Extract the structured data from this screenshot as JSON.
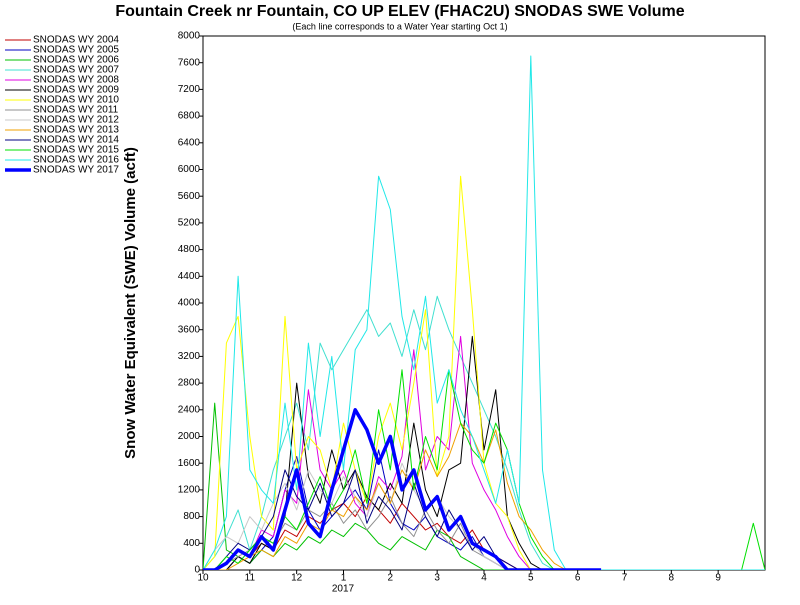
{
  "chart_data": {
    "type": "line",
    "title": "Fountain Creek nr Fountain, CO UP ELEV (FHAC2U) SNODAS SWE Volume",
    "subtitle": "(Each line corresponds to a Water Year starting Oct 1)",
    "y_label": "Snow Water Equivalent (SWE) Volume (acft)",
    "x_annotation": "2017",
    "x": [
      0,
      0.25,
      0.5,
      0.75,
      1,
      1.25,
      1.5,
      1.75,
      2,
      2.25,
      2.5,
      2.75,
      3,
      3.25,
      3.5,
      3.75,
      4,
      4.25,
      4.5,
      4.75,
      5,
      5.25,
      5.5,
      5.75,
      6,
      6.25,
      6.5,
      6.75,
      7,
      7.25,
      7.5,
      7.75,
      8,
      8.25,
      8.5,
      11.5,
      11.75,
      12
    ],
    "xlim": [
      0,
      12
    ],
    "xticks": [
      {
        "value": 0,
        "label": "10"
      },
      {
        "value": 1,
        "label": "11"
      },
      {
        "value": 2,
        "label": "12"
      },
      {
        "value": 3,
        "label": "1"
      },
      {
        "value": 4,
        "label": "2"
      },
      {
        "value": 5,
        "label": "3"
      },
      {
        "value": 6,
        "label": "4"
      },
      {
        "value": 7,
        "label": "5"
      },
      {
        "value": 8,
        "label": "6"
      },
      {
        "value": 9,
        "label": "7"
      },
      {
        "value": 10,
        "label": "8"
      },
      {
        "value": 11,
        "label": "9"
      }
    ],
    "ylim": [
      0,
      8000
    ],
    "yticks": [
      0,
      400,
      800,
      1200,
      1600,
      2000,
      2400,
      2800,
      3200,
      3600,
      4000,
      4400,
      4800,
      5200,
      5600,
      6000,
      6400,
      6800,
      7200,
      7600,
      8000
    ],
    "grid": false,
    "legend": "left",
    "series": [
      {
        "name": "SNODAS WY 2004",
        "color": "#c00000",
        "line_width": 1,
        "values": [
          0,
          0,
          100,
          300,
          200,
          400,
          300,
          600,
          500,
          800,
          700,
          900,
          1000,
          800,
          1100,
          900,
          700,
          1000,
          800,
          600,
          700,
          500,
          400,
          600,
          300,
          200,
          100,
          0,
          0,
          0,
          0,
          0,
          0,
          0,
          0,
          0,
          0,
          0
        ]
      },
      {
        "name": "SNODAS WY 2005",
        "color": "#0000c0",
        "line_width": 1,
        "values": [
          0,
          0,
          0,
          200,
          100,
          300,
          500,
          1200,
          1700,
          900,
          600,
          800,
          1000,
          1200,
          900,
          1800,
          1000,
          700,
          600,
          800,
          500,
          400,
          300,
          500,
          200,
          100,
          0,
          0,
          0,
          0,
          0,
          0,
          0,
          0,
          0,
          0,
          0,
          0
        ]
      },
      {
        "name": "SNODAS WY 2006",
        "color": "#00c000",
        "line_width": 1,
        "values": [
          0,
          2500,
          300,
          200,
          100,
          300,
          200,
          400,
          300,
          500,
          400,
          600,
          500,
          700,
          600,
          400,
          300,
          500,
          400,
          300,
          600,
          500,
          200,
          100,
          0,
          0,
          0,
          0,
          0,
          0,
          0,
          0,
          0,
          0,
          0,
          0,
          0,
          0
        ]
      },
      {
        "name": "SNODAS WY 2007",
        "color": "#40e0d0",
        "line_width": 1,
        "values": [
          0,
          200,
          500,
          900,
          300,
          800,
          1500,
          2000,
          2500,
          1800,
          3400,
          3000,
          3300,
          3600,
          3900,
          3500,
          3700,
          3200,
          3900,
          3300,
          4100,
          3600,
          3200,
          2800,
          2400,
          2000,
          1500,
          900,
          400,
          100,
          0,
          0,
          0,
          0,
          0,
          0,
          0,
          0
        ]
      },
      {
        "name": "SNODAS WY 2008",
        "color": "#e000e0",
        "line_width": 1,
        "values": [
          0,
          0,
          100,
          300,
          200,
          600,
          500,
          1200,
          1000,
          2700,
          1500,
          1200,
          1500,
          1000,
          800,
          1400,
          1200,
          1700,
          3300,
          1500,
          2000,
          1800,
          3500,
          1600,
          1200,
          900,
          500,
          200,
          0,
          0,
          0,
          0,
          0,
          0,
          0,
          0,
          0,
          0
        ]
      },
      {
        "name": "SNODAS WY 2009",
        "color": "#000000",
        "line_width": 1,
        "values": [
          0,
          0,
          0,
          200,
          100,
          400,
          300,
          800,
          2800,
          1400,
          1000,
          1800,
          1200,
          1500,
          1100,
          900,
          1300,
          1000,
          2200,
          1200,
          800,
          1500,
          1600,
          3500,
          1800,
          2700,
          800,
          400,
          100,
          0,
          0,
          0,
          0,
          0,
          0,
          0,
          0,
          0
        ]
      },
      {
        "name": "SNODAS WY 2010",
        "color": "#ffff00",
        "line_width": 1,
        "values": [
          0,
          200,
          3400,
          3800,
          2000,
          800,
          600,
          3800,
          1500,
          2000,
          1800,
          1200,
          2200,
          1500,
          1000,
          2000,
          2500,
          1800,
          2800,
          3900,
          1400,
          2000,
          5900,
          3900,
          1600,
          1000,
          800,
          300,
          0,
          0,
          0,
          0,
          0,
          0,
          0,
          0,
          0,
          0
        ]
      },
      {
        "name": "SNODAS WY 2011",
        "color": "#909090",
        "line_width": 1,
        "values": [
          0,
          0,
          100,
          200,
          300,
          500,
          400,
          700,
          600,
          900,
          800,
          1000,
          700,
          900,
          600,
          800,
          1100,
          700,
          500,
          900,
          600,
          400,
          700,
          300,
          200,
          100,
          0,
          0,
          0,
          0,
          0,
          0,
          0,
          0,
          0,
          0,
          0,
          0
        ]
      },
      {
        "name": "SNODAS WY 2012",
        "color": "#c8c8c8",
        "line_width": 1,
        "values": [
          0,
          300,
          500,
          400,
          800,
          600,
          1000,
          1300,
          900,
          1500,
          1200,
          1000,
          1400,
          1100,
          800,
          1300,
          1000,
          1600,
          1200,
          900,
          1100,
          800,
          600,
          400,
          200,
          100,
          0,
          0,
          0,
          0,
          0,
          0,
          0,
          0,
          0,
          0,
          0,
          0
        ]
      },
      {
        "name": "SNODAS WY 2013",
        "color": "#f0a000",
        "line_width": 1,
        "values": [
          0,
          0,
          0,
          100,
          200,
          300,
          200,
          500,
          400,
          700,
          600,
          900,
          800,
          1100,
          900,
          1300,
          1000,
          1500,
          1200,
          1800,
          1400,
          1700,
          2200,
          2000,
          1600,
          2100,
          1300,
          800,
          600,
          300,
          100,
          0,
          0,
          0,
          0,
          0,
          0,
          0
        ]
      },
      {
        "name": "SNODAS WY 2014",
        "color": "#000080",
        "line_width": 1,
        "values": [
          0,
          0,
          200,
          400,
          300,
          500,
          800,
          1500,
          1100,
          900,
          1300,
          800,
          1000,
          1500,
          700,
          1100,
          900,
          600,
          1300,
          800,
          500,
          900,
          600,
          300,
          500,
          200,
          100,
          0,
          0,
          0,
          0,
          0,
          0,
          0,
          0,
          0,
          0,
          0
        ]
      },
      {
        "name": "SNODAS WY 2015",
        "color": "#00e000",
        "line_width": 1,
        "values": [
          0,
          0,
          200,
          100,
          300,
          500,
          400,
          800,
          600,
          1000,
          1400,
          900,
          1200,
          1800,
          1000,
          2400,
          1500,
          3000,
          1200,
          2000,
          1500,
          3000,
          2200,
          1800,
          1600,
          2200,
          1800,
          1000,
          500,
          200,
          0,
          0,
          0,
          0,
          0,
          0,
          700,
          0
        ]
      },
      {
        "name": "SNODAS WY 2016",
        "color": "#20e8e8",
        "line_width": 1,
        "values": [
          0,
          300,
          800,
          4400,
          1500,
          1200,
          1000,
          2500,
          1200,
          3400,
          2000,
          3200,
          1500,
          3300,
          3600,
          5900,
          5400,
          3800,
          3000,
          4100,
          2500,
          3000,
          2400,
          2000,
          1500,
          1000,
          1800,
          1000,
          7700,
          1500,
          300,
          0,
          0,
          0,
          0,
          0,
          0,
          0
        ]
      },
      {
        "name": "SNODAS WY 2017",
        "color": "#0000ff",
        "line_width": 3.5,
        "values": [
          0,
          0,
          100,
          300,
          200,
          500,
          300,
          900,
          1500,
          700,
          500,
          1200,
          1800,
          2400,
          2100,
          1600,
          2000,
          1200,
          1500,
          900,
          1100,
          600,
          800,
          400,
          300,
          200,
          0,
          0,
          0,
          0,
          0,
          0,
          0,
          0,
          0,
          null,
          null,
          null
        ]
      }
    ]
  }
}
